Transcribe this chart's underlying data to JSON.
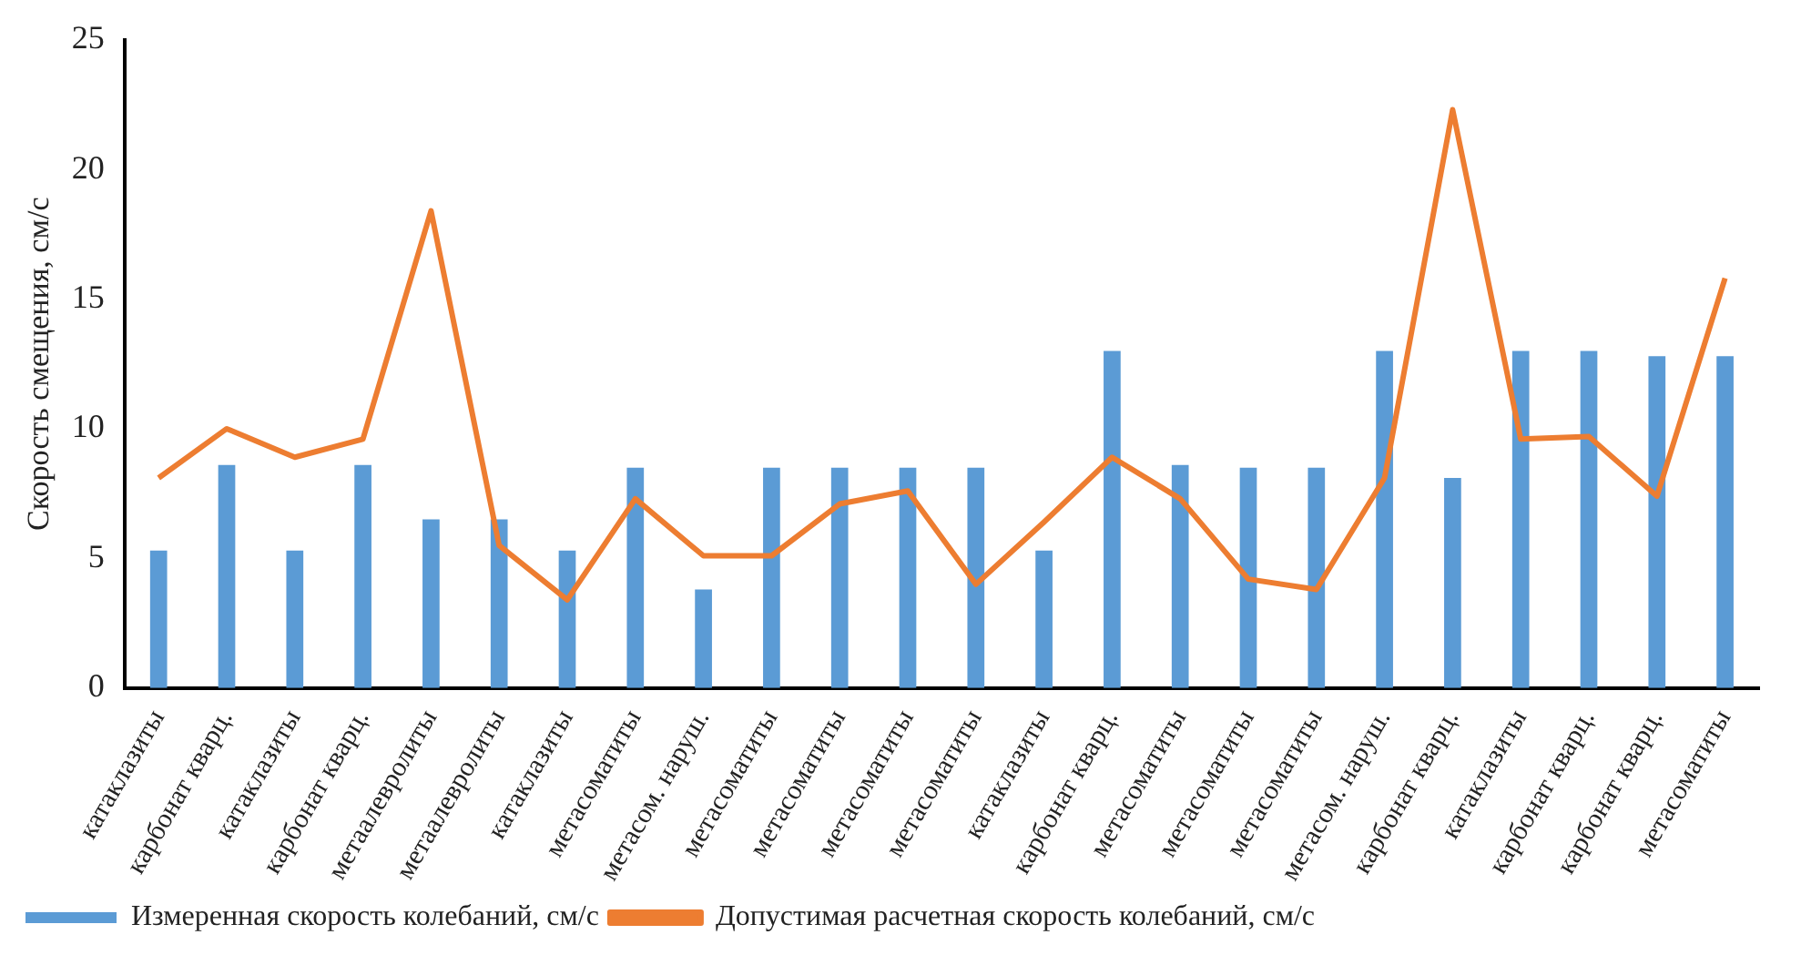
{
  "chart_data": {
    "type": "bar",
    "ylabel": "Скорость смещения, см/с",
    "categories": [
      "катаклазиты",
      "карбонат кварц.",
      "катаклазиты",
      "карбонат кварц.",
      "метаалевролиты",
      "метаалевролиты",
      "катаклазиты",
      "метасоматиты",
      "метасом. наруш.",
      "метасоматиты",
      "метасоматиты",
      "метасоматиты",
      "метасоматиты",
      "катаклазиты",
      "карбонат кварц.",
      "метасоматиты",
      "метасоматиты",
      "метасоматиты",
      "метасом. наруш.",
      "карбонат кварц.",
      "катаклазиты",
      "карбонат кварц.",
      "карбонат кварц.",
      "метасоматиты"
    ],
    "series": [
      {
        "name": "Измеренная скорость колебаний, см/с",
        "color": "#5b9bd5",
        "values": [
          5.3,
          8.6,
          5.3,
          8.6,
          6.5,
          6.5,
          5.3,
          8.5,
          3.8,
          8.5,
          8.5,
          8.5,
          8.5,
          5.3,
          13,
          8.6,
          8.5,
          8.5,
          13,
          8.1,
          13,
          13,
          12.8,
          12.8
        ]
      },
      {
        "name": "Допустимая расчетная скорость колебаний, см/с",
        "type": "line",
        "color": "#ed7d31",
        "values": [
          8.1,
          10,
          8.9,
          9.6,
          18.4,
          5.5,
          3.4,
          7.3,
          5.1,
          5.1,
          7.1,
          7.6,
          4.0,
          6.4,
          8.9,
          7.3,
          4.2,
          3.8,
          8.1,
          22.3,
          9.6,
          9.7,
          7.4,
          15.8
        ]
      }
    ],
    "ylim": [
      0,
      25
    ],
    "yticks": [
      0,
      5,
      10,
      15,
      20,
      25
    ],
    "grid": false,
    "legend": "bottom",
    "marker": "none"
  }
}
